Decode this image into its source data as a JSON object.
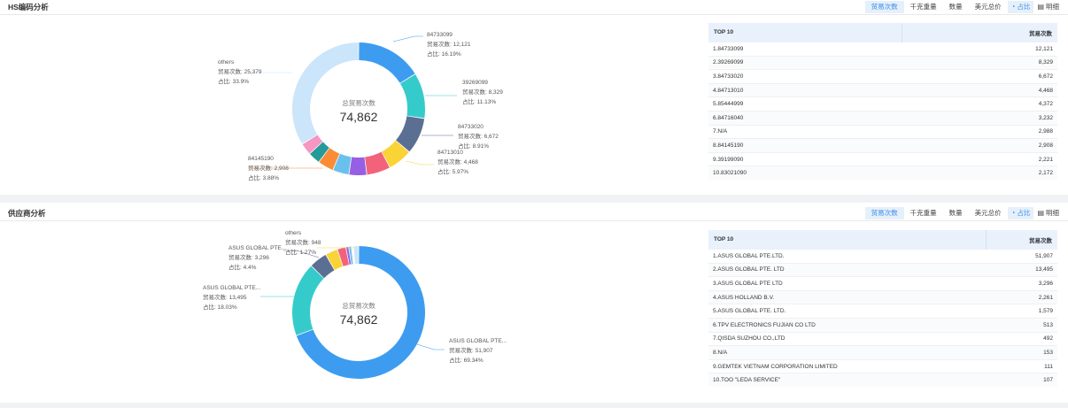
{
  "colors": [
    "#3d9cf0",
    "#36cbcb",
    "#5b6f92",
    "#fad337",
    "#f2637b",
    "#975fe4",
    "#6ac0ec",
    "#fa8c35",
    "#269a99",
    "#f596c3",
    "#cbe5fb"
  ],
  "toolbar": {
    "buttons": [
      "贸易次数",
      "千克重量",
      "数量",
      "美元总价"
    ],
    "active_index": 0,
    "pie_label": "占比",
    "detail_label": "明细"
  },
  "sections": [
    {
      "title": "HS编码分析",
      "center_title": "总贸易次数",
      "center_value": "74,862",
      "table": {
        "col1": "TOP 10",
        "col2": "贸易次数",
        "rows": [
          {
            "name": "1.84733099",
            "value": "12,121"
          },
          {
            "name": "2.39269099",
            "value": "8,329"
          },
          {
            "name": "3.84733020",
            "value": "6,672"
          },
          {
            "name": "4.84713010",
            "value": "4,468"
          },
          {
            "name": "5.85444999",
            "value": "4,372"
          },
          {
            "name": "6.84716040",
            "value": "3,232"
          },
          {
            "name": "7.N/A",
            "value": "2,988"
          },
          {
            "name": "8.84145190",
            "value": "2,908"
          },
          {
            "name": "9.39199090",
            "value": "2,221"
          },
          {
            "name": "10.83021090",
            "value": "2,172"
          }
        ]
      },
      "labels": [
        {
          "name": "84733099",
          "l1": "贸易次数: 12,121",
          "l2": "占比: 16.19%"
        },
        {
          "name": "39269099",
          "l1": "贸易次数: 8,329",
          "l2": "占比: 11.13%"
        },
        {
          "name": "84733020",
          "l1": "贸易次数: 6,672",
          "l2": "占比: 8.91%"
        },
        {
          "name": "84713010",
          "l1": "贸易次数: 4,468",
          "l2": "占比: 5.97%"
        },
        {
          "name": "84145190",
          "l1": "贸易次数: 2,908",
          "l2": "占比: 3.88%"
        },
        {
          "name": "others",
          "l1": "贸易次数: 25,379",
          "l2": "占比: 33.9%"
        }
      ]
    },
    {
      "title": "供应商分析",
      "center_title": "总贸易次数",
      "center_value": "74,862",
      "table": {
        "col1": "TOP 10",
        "col2": "贸易次数",
        "rows": [
          {
            "name": "1.ASUS GLOBAL PTE.LTD.",
            "value": "51,907"
          },
          {
            "name": "2.ASUS GLOBAL PTE. LTD",
            "value": "13,495"
          },
          {
            "name": "3.ASUS GLOBAL PTE LTD",
            "value": "3,296"
          },
          {
            "name": "4.ASUS HOLLAND B.V.",
            "value": "2,261"
          },
          {
            "name": "5.ASUS GLOBAL PTE. LTD.",
            "value": "1,579"
          },
          {
            "name": "6.TPV ELECTRONICS FUJIAN CO LTD",
            "value": "513"
          },
          {
            "name": "7.QISDA SUZHOU CO.,LTD",
            "value": "492"
          },
          {
            "name": "8.N/A",
            "value": "153"
          },
          {
            "name": "9.GEMTEK VIETNAM CORPORATION LIMITED",
            "value": "111"
          },
          {
            "name": "10.TOO \"LEDA SERVICE\"",
            "value": "107"
          }
        ]
      },
      "labels": [
        {
          "name": "ASUS GLOBAL PTE...",
          "l1": "贸易次数: 51,907",
          "l2": "占比: 69.34%"
        },
        {
          "name": "ASUS GLOBAL PTE...",
          "l1": "贸易次数: 13,495",
          "l2": "占比: 18.03%"
        },
        {
          "name": "ASUS GLOBAL PTE...",
          "l1": "贸易次数: 3,296",
          "l2": "占比: 4.4%"
        },
        {
          "name": "others",
          "l1": "贸易次数: 948",
          "l2": "占比: 1.27%"
        }
      ]
    }
  ],
  "chart_data": [
    {
      "type": "pie",
      "title": "HS编码分析",
      "categories": [
        "84733099",
        "39269099",
        "84733020",
        "84713010",
        "85444999",
        "84716040",
        "N/A",
        "84145190",
        "39199090",
        "83021090",
        "others"
      ],
      "values": [
        12121,
        8329,
        6672,
        4468,
        4372,
        3232,
        2988,
        2908,
        2221,
        2172,
        25379
      ]
    },
    {
      "type": "pie",
      "title": "供应商分析",
      "categories": [
        "ASUS GLOBAL PTE.LTD.",
        "ASUS GLOBAL PTE. LTD",
        "ASUS GLOBAL PTE LTD",
        "ASUS HOLLAND B.V.",
        "ASUS GLOBAL PTE. LTD.",
        "TPV ELECTRONICS FUJIAN CO LTD",
        "QISDA SUZHOU CO.,LTD",
        "N/A",
        "GEMTEK VIETNAM CORPORATION LIMITED",
        "TOO \"LEDA SERVICE\"",
        "others"
      ],
      "values": [
        51907,
        13495,
        3296,
        2261,
        1579,
        513,
        492,
        153,
        111,
        107,
        948
      ]
    }
  ]
}
